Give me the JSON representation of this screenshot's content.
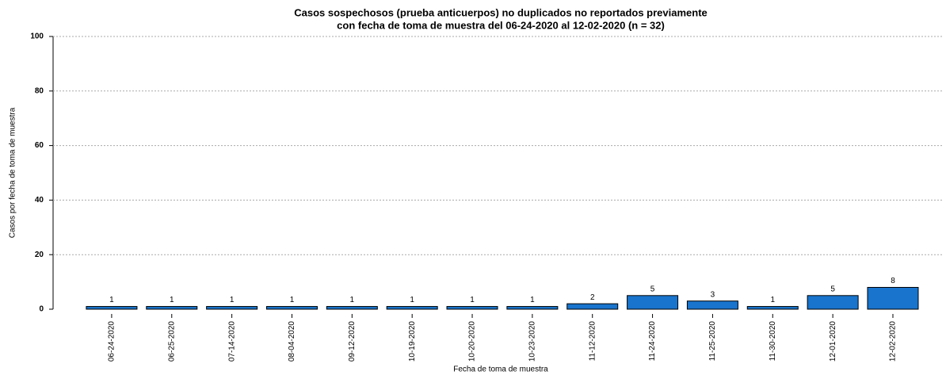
{
  "chart_data": {
    "type": "bar",
    "title": [
      "Casos sospechosos (prueba anticuerpos) no duplicados no reportados previamente",
      "con fecha de toma de muestra del 06-24-2020 al 12-02-2020 (n = 32)"
    ],
    "x_label": "Fecha de toma de muestra",
    "y_label": "Casos por fecha de toma de muestra",
    "categories": [
      "06-24-2020",
      "06-25-2020",
      "07-14-2020",
      "08-04-2020",
      "09-12-2020",
      "10-19-2020",
      "10-20-2020",
      "10-23-2020",
      "11-12-2020",
      "11-24-2020",
      "11-25-2020",
      "11-30-2020",
      "12-01-2020",
      "12-02-2020"
    ],
    "values": [
      1,
      1,
      1,
      1,
      1,
      1,
      1,
      1,
      2,
      5,
      3,
      1,
      5,
      8
    ],
    "color": "#1874cd",
    "ylim": [
      0,
      100
    ],
    "yticks": [
      0,
      20,
      40,
      60,
      80,
      100
    ],
    "grid": true
  }
}
